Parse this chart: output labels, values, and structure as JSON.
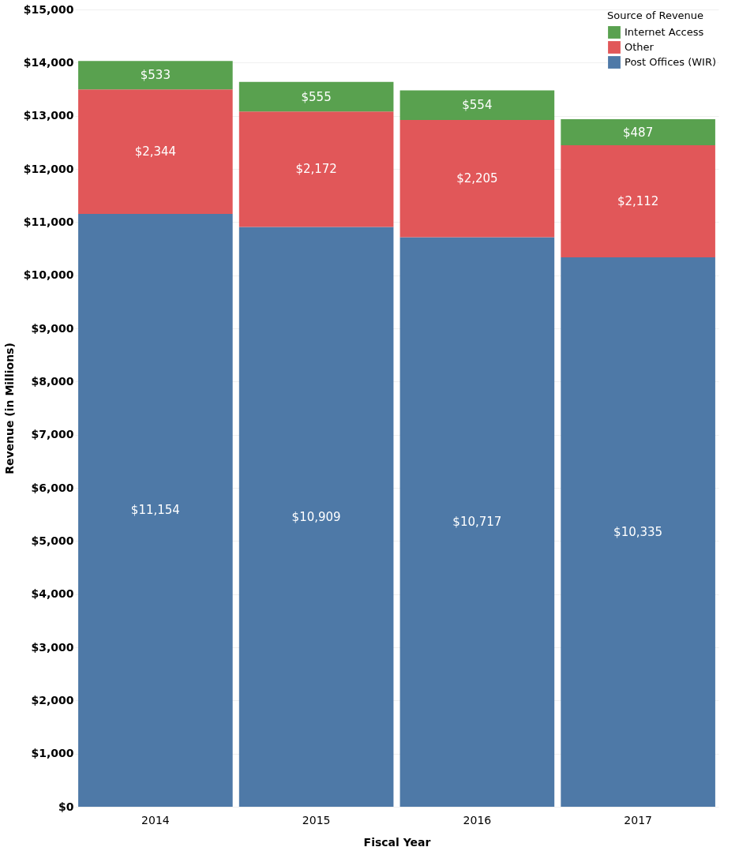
{
  "chart_data": {
    "type": "bar",
    "stacked": true,
    "xlabel": "Fiscal Year",
    "ylabel": "Revenue (in Millions)",
    "legend_title": "Source of Revenue",
    "legend": "top right",
    "grid": "y",
    "categories": [
      "2014",
      "2015",
      "2016",
      "2017"
    ],
    "ylim": [
      0,
      15000
    ],
    "yticks": [
      {
        "value": 0,
        "label": "$0"
      },
      {
        "value": 1000,
        "label": "$1,000"
      },
      {
        "value": 2000,
        "label": "$2,000"
      },
      {
        "value": 3000,
        "label": "$3,000"
      },
      {
        "value": 4000,
        "label": "$4,000"
      },
      {
        "value": 5000,
        "label": "$5,000"
      },
      {
        "value": 6000,
        "label": "$6,000"
      },
      {
        "value": 7000,
        "label": "$7,000"
      },
      {
        "value": 8000,
        "label": "$8,000"
      },
      {
        "value": 9000,
        "label": "$9,000"
      },
      {
        "value": 10000,
        "label": "$10,000"
      },
      {
        "value": 11000,
        "label": "$11,000"
      },
      {
        "value": 12000,
        "label": "$12,000"
      },
      {
        "value": 13000,
        "label": "$13,000"
      },
      {
        "value": 14000,
        "label": "$14,000"
      },
      {
        "value": 15000,
        "label": "$15,000"
      }
    ],
    "series": [
      {
        "name": "Post Offices (WIR)",
        "color": "#4e79a7",
        "values": [
          11154,
          10909,
          10717,
          10335
        ],
        "value_labels": [
          "$11,154",
          "$10,909",
          "$10,717",
          "$10,335"
        ]
      },
      {
        "name": "Other",
        "color": "#e15759",
        "values": [
          2344,
          2172,
          2205,
          2112
        ],
        "value_labels": [
          "$2,344",
          "$2,172",
          "$2,205",
          "$2,112"
        ]
      },
      {
        "name": "Internet Access",
        "color": "#59a14f",
        "values": [
          533,
          555,
          554,
          487
        ],
        "value_labels": [
          "$533",
          "$555",
          "$554",
          "$487"
        ]
      }
    ]
  }
}
